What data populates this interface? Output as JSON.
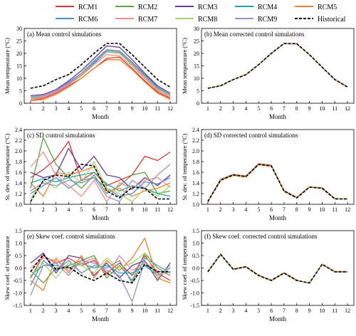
{
  "legend": {
    "entries": [
      {
        "name": "RCM1",
        "color": "#e3332f",
        "dashed": false
      },
      {
        "name": "RCM2",
        "color": "#5aa33e",
        "dashed": false
      },
      {
        "name": "RCM3",
        "color": "#6a3c97",
        "dashed": false
      },
      {
        "name": "RCM4",
        "color": "#1aa3b0",
        "dashed": false
      },
      {
        "name": "RCM5",
        "color": "#f07f2b",
        "dashed": false
      },
      {
        "name": "RCM6",
        "color": "#4f8fc7",
        "dashed": false
      },
      {
        "name": "RCM7",
        "color": "#ee8d8b",
        "dashed": false
      },
      {
        "name": "RCM8",
        "color": "#a6d36b",
        "dashed": false
      },
      {
        "name": "RCM9",
        "color": "#9b8fc0",
        "dashed": false
      },
      {
        "name": "Historical",
        "color": "#000000",
        "dashed": true
      }
    ]
  },
  "chart_data": [
    {
      "id": "a",
      "type": "line",
      "title": "(a) Mean control simulations",
      "xlabel": "Month",
      "ylabel": "Mean temperature (°C)",
      "x": [
        1,
        2,
        3,
        4,
        5,
        6,
        7,
        8,
        9,
        10,
        11,
        12
      ],
      "xlim": [
        0.5,
        12.5
      ],
      "ylim": [
        0,
        30
      ],
      "yticks": [
        "0",
        "5",
        "10",
        "15",
        "20",
        "25",
        "30"
      ],
      "series": [
        {
          "name": "RCM1",
          "values": [
            1.0,
            2.0,
            4.0,
            7.0,
            10.0,
            14.0,
            18.0,
            18.5,
            14.0,
            9.0,
            4.5,
            2.0
          ]
        },
        {
          "name": "RCM2",
          "values": [
            2.5,
            3.0,
            5.0,
            8.0,
            12.0,
            16.5,
            21.0,
            20.5,
            16.0,
            11.0,
            6.0,
            3.5
          ]
        },
        {
          "name": "RCM3",
          "values": [
            3.0,
            3.5,
            5.5,
            9.0,
            13.0,
            18.0,
            23.0,
            22.5,
            17.5,
            12.0,
            7.0,
            4.0
          ]
        },
        {
          "name": "RCM4",
          "values": [
            2.0,
            2.5,
            4.5,
            7.5,
            11.5,
            16.0,
            20.5,
            20.0,
            15.5,
            10.5,
            5.5,
            3.0
          ]
        },
        {
          "name": "RCM5",
          "values": [
            1.0,
            1.5,
            3.5,
            6.5,
            10.0,
            14.0,
            17.5,
            17.5,
            13.5,
            8.5,
            4.0,
            1.5
          ]
        },
        {
          "name": "RCM6",
          "values": [
            2.5,
            3.0,
            5.0,
            8.5,
            12.0,
            17.0,
            21.5,
            21.0,
            16.5,
            11.5,
            6.5,
            3.5
          ]
        },
        {
          "name": "RCM7",
          "values": [
            1.5,
            2.5,
            4.5,
            7.5,
            11.0,
            15.5,
            19.5,
            19.0,
            15.0,
            10.0,
            5.0,
            2.5
          ]
        },
        {
          "name": "RCM8",
          "values": [
            2.0,
            3.0,
            5.0,
            8.0,
            11.5,
            16.5,
            20.5,
            20.0,
            15.5,
            10.5,
            5.5,
            3.0
          ]
        },
        {
          "name": "RCM9",
          "values": [
            2.5,
            3.0,
            5.0,
            8.0,
            12.0,
            16.5,
            21.0,
            20.5,
            16.0,
            11.0,
            6.0,
            3.5
          ]
        },
        {
          "name": "Historical",
          "values": [
            6.0,
            7.0,
            9.5,
            11.5,
            15.5,
            20.0,
            24.0,
            24.0,
            19.5,
            14.5,
            9.5,
            6.5
          ]
        }
      ]
    },
    {
      "id": "b",
      "type": "line",
      "title": "(b) Mean corrected control simulations",
      "xlabel": "Month",
      "ylabel": "Mean temperature (°C)",
      "x": [
        1,
        2,
        3,
        4,
        5,
        6,
        7,
        8,
        9,
        10,
        11,
        12
      ],
      "xlim": [
        0.5,
        12.5
      ],
      "ylim": [
        0,
        30
      ],
      "yticks": [
        "0",
        "5",
        "10",
        "15",
        "20",
        "25",
        "30"
      ],
      "series": [
        {
          "name": "RCM1",
          "values": [
            6.0,
            7.1,
            9.5,
            11.4,
            15.5,
            20.0,
            23.9,
            23.8,
            19.5,
            14.4,
            9.6,
            6.6
          ]
        },
        {
          "name": "RCM5",
          "values": [
            5.9,
            7.0,
            9.4,
            11.5,
            15.4,
            20.1,
            24.0,
            23.9,
            19.4,
            14.5,
            9.5,
            6.5
          ]
        },
        {
          "name": "RCM8",
          "values": [
            6.1,
            7.0,
            9.5,
            11.5,
            15.5,
            19.9,
            24.0,
            23.9,
            19.6,
            14.5,
            9.4,
            6.5
          ]
        },
        {
          "name": "Historical",
          "values": [
            6.0,
            7.0,
            9.5,
            11.5,
            15.5,
            20.0,
            24.0,
            23.9,
            19.5,
            14.5,
            9.5,
            6.5
          ]
        }
      ]
    },
    {
      "id": "c",
      "type": "line",
      "title": "(c) SD control simulations",
      "xlabel": "Month",
      "ylabel": "St. dev. of temperature (°C)",
      "x": [
        1,
        2,
        3,
        4,
        5,
        6,
        7,
        8,
        9,
        10,
        11,
        12
      ],
      "xlim": [
        0.5,
        12.5
      ],
      "ylim": [
        1.0,
        2.4
      ],
      "yticks": [
        "1.0",
        "1.2",
        "1.4",
        "1.6",
        "1.8",
        "2.0",
        "2.2",
        "2.4"
      ],
      "series": [
        {
          "name": "RCM1",
          "values": [
            1.5,
            1.65,
            1.85,
            2.18,
            1.45,
            1.6,
            1.35,
            1.45,
            1.55,
            1.9,
            1.82,
            1.98
          ]
        },
        {
          "name": "RCM2",
          "values": [
            1.3,
            2.25,
            1.75,
            1.5,
            1.3,
            1.55,
            1.2,
            1.35,
            1.55,
            1.6,
            1.2,
            1.25
          ]
        },
        {
          "name": "RCM3",
          "values": [
            1.6,
            1.5,
            1.55,
            2.05,
            1.65,
            1.9,
            1.55,
            1.5,
            1.28,
            1.5,
            1.35,
            1.55
          ]
        },
        {
          "name": "RCM4",
          "values": [
            1.4,
            1.48,
            1.42,
            1.5,
            1.55,
            1.6,
            1.38,
            1.25,
            1.35,
            1.3,
            1.2,
            1.15
          ]
        },
        {
          "name": "RCM5",
          "values": [
            1.4,
            1.15,
            1.6,
            1.55,
            1.62,
            1.7,
            1.25,
            1.3,
            1.15,
            1.25,
            1.3,
            1.4
          ]
        },
        {
          "name": "RCM6",
          "values": [
            1.2,
            1.35,
            1.5,
            1.3,
            1.45,
            1.5,
            1.3,
            1.15,
            1.2,
            1.42,
            1.38,
            1.5
          ]
        },
        {
          "name": "RCM7",
          "values": [
            1.7,
            1.98,
            1.55,
            1.35,
            1.15,
            1.45,
            1.05,
            1.4,
            1.3,
            1.45,
            1.5,
            1.32
          ]
        },
        {
          "name": "RCM8",
          "values": [
            1.1,
            1.45,
            1.3,
            1.6,
            1.4,
            1.8,
            1.3,
            1.2,
            1.05,
            1.3,
            1.15,
            1.35
          ]
        },
        {
          "name": "RCM9",
          "values": [
            1.25,
            1.4,
            1.35,
            1.45,
            1.4,
            1.5,
            1.15,
            1.05,
            1.45,
            1.3,
            1.55,
            1.75
          ]
        },
        {
          "name": "Historical",
          "values": [
            1.05,
            1.45,
            1.55,
            1.52,
            1.75,
            1.72,
            1.25,
            1.12,
            1.32,
            1.3,
            1.1,
            1.1
          ]
        }
      ]
    },
    {
      "id": "d",
      "type": "line",
      "title": "(d) SD corrected control simulations",
      "xlabel": "Month",
      "ylabel": "St. dev. of temperature (°C)",
      "x": [
        1,
        2,
        3,
        4,
        5,
        6,
        7,
        8,
        9,
        10,
        11,
        12
      ],
      "xlim": [
        0.5,
        12.5
      ],
      "ylim": [
        1.0,
        2.4
      ],
      "yticks": [
        "1.0",
        "1.2",
        "1.4",
        "1.6",
        "1.8",
        "2.0",
        "2.2",
        "2.4"
      ],
      "series": [
        {
          "name": "RCM1",
          "values": [
            1.06,
            1.47,
            1.56,
            1.53,
            1.76,
            1.73,
            1.26,
            1.13,
            1.33,
            1.31,
            1.11,
            1.1
          ]
        },
        {
          "name": "RCM5",
          "values": [
            1.05,
            1.45,
            1.54,
            1.51,
            1.74,
            1.71,
            1.24,
            1.12,
            1.32,
            1.3,
            1.1,
            1.1
          ]
        },
        {
          "name": "RCM8",
          "values": [
            1.05,
            1.46,
            1.55,
            1.52,
            1.75,
            1.72,
            1.25,
            1.12,
            1.33,
            1.3,
            1.1,
            1.11
          ]
        },
        {
          "name": "Historical",
          "values": [
            1.05,
            1.45,
            1.55,
            1.52,
            1.75,
            1.72,
            1.25,
            1.12,
            1.32,
            1.3,
            1.1,
            1.1
          ]
        }
      ]
    },
    {
      "id": "e",
      "type": "line",
      "title": "(e) Skew coef. control simulations",
      "xlabel": "Month",
      "ylabel": "Skew coef. of temperature",
      "x": [
        1,
        2,
        3,
        4,
        5,
        6,
        7,
        8,
        9,
        10,
        11,
        12
      ],
      "xlim": [
        0.5,
        12.5
      ],
      "ylim": [
        -1.5,
        1.5
      ],
      "yticks": [
        "-1.5",
        "-1.0",
        "-0.5",
        "0.0",
        "0.5",
        "1.0",
        "1.5"
      ],
      "series": [
        {
          "name": "RCM1",
          "values": [
            -0.4,
            0.5,
            0.2,
            0.4,
            0.1,
            0.3,
            -0.2,
            0.2,
            -0.3,
            0.5,
            -0.2,
            -0.5
          ]
        },
        {
          "name": "RCM2",
          "values": [
            -0.1,
            -0.6,
            0.0,
            0.1,
            0.3,
            0.5,
            -0.4,
            0.1,
            -0.5,
            0.6,
            0.0,
            -0.3
          ]
        },
        {
          "name": "RCM3",
          "values": [
            0.2,
            0.6,
            -0.2,
            0.5,
            0.4,
            -0.3,
            0.2,
            -0.4,
            0.1,
            0.3,
            -0.5,
            0.2
          ]
        },
        {
          "name": "RCM4",
          "values": [
            -0.3,
            0.1,
            0.1,
            0.0,
            0.2,
            0.0,
            0.1,
            -0.2,
            -0.2,
            0.1,
            -0.3,
            0.0
          ]
        },
        {
          "name": "RCM5",
          "values": [
            -0.5,
            -0.9,
            0.4,
            -0.2,
            0.5,
            -0.4,
            0.3,
            -0.1,
            0.4,
            1.2,
            -0.4,
            -0.6
          ]
        },
        {
          "name": "RCM6",
          "values": [
            -0.7,
            0.3,
            -0.1,
            0.3,
            -0.2,
            0.1,
            0.0,
            0.3,
            -0.6,
            0.4,
            0.1,
            -0.2
          ]
        },
        {
          "name": "RCM7",
          "values": [
            0.0,
            0.4,
            0.3,
            -0.1,
            0.2,
            0.4,
            -0.3,
            0.5,
            -0.1,
            0.2,
            -0.1,
            -0.3
          ]
        },
        {
          "name": "RCM8",
          "values": [
            -0.3,
            0.2,
            -0.4,
            0.2,
            0.1,
            -0.2,
            0.4,
            0.0,
            0.2,
            0.6,
            -0.4,
            0.1
          ]
        },
        {
          "name": "RCM9",
          "values": [
            -1.1,
            0.1,
            0.2,
            -0.3,
            0.3,
            0.2,
            -0.1,
            -0.3,
            -1.35,
            0.3,
            -0.3,
            0.0
          ]
        },
        {
          "name": "Historical",
          "values": [
            -0.15,
            0.55,
            -0.05,
            0.05,
            -0.3,
            -0.5,
            -0.2,
            -0.5,
            -0.6,
            0.15,
            -0.15,
            -0.15
          ]
        }
      ]
    },
    {
      "id": "f",
      "type": "line",
      "title": "(f) Skew coef. corrected control simulations",
      "xlabel": "Month",
      "ylabel": "Skew coef. of temperature",
      "x": [
        1,
        2,
        3,
        4,
        5,
        6,
        7,
        8,
        9,
        10,
        11,
        12
      ],
      "xlim": [
        0.5,
        12.5
      ],
      "ylim": [
        -1.5,
        1.5
      ],
      "yticks": [
        "-1.5",
        "-1.0",
        "-0.5",
        "0.0",
        "0.5",
        "1.0",
        "1.5"
      ],
      "series": [
        {
          "name": "RCM1",
          "values": [
            -0.14,
            0.56,
            -0.04,
            0.06,
            -0.29,
            -0.49,
            -0.19,
            -0.49,
            -0.61,
            0.16,
            -0.14,
            -0.14
          ]
        },
        {
          "name": "RCM5",
          "values": [
            -0.16,
            0.54,
            -0.06,
            0.04,
            -0.31,
            -0.51,
            -0.21,
            -0.51,
            -0.59,
            0.14,
            -0.16,
            -0.16
          ]
        },
        {
          "name": "RCM8",
          "values": [
            -0.15,
            0.55,
            -0.05,
            0.05,
            -0.3,
            -0.5,
            -0.2,
            -0.5,
            -0.6,
            0.15,
            -0.15,
            -0.15
          ]
        },
        {
          "name": "Historical",
          "values": [
            -0.15,
            0.55,
            -0.05,
            0.05,
            -0.3,
            -0.5,
            -0.2,
            -0.5,
            -0.6,
            0.15,
            -0.15,
            -0.15
          ]
        }
      ]
    }
  ]
}
